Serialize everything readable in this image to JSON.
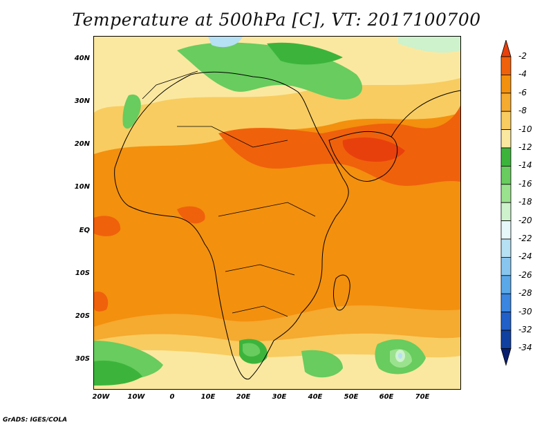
{
  "title": "Temperature at 500hPa [C], VT: 2017100700",
  "credit": "GrADS: IGES/COLA",
  "axes": {
    "lat_labels": [
      "40N",
      "30N",
      "20N",
      "10N",
      "EQ",
      "10S",
      "20S",
      "30S"
    ],
    "lon_labels": [
      "20W",
      "10W",
      "0",
      "10E",
      "20E",
      "30E",
      "40E",
      "50E",
      "60E",
      "70E"
    ]
  },
  "colorbar": {
    "labels": [
      "-2",
      "-4",
      "-6",
      "-8",
      "-10",
      "-12",
      "-14",
      "-16",
      "-18",
      "-20",
      "-22",
      "-24",
      "-26",
      "-28",
      "-30",
      "-32",
      "-34"
    ],
    "colors": [
      "#e8400c",
      "#f0610c",
      "#f3900e",
      "#f5aa30",
      "#f8cc60",
      "#fbe8a0",
      "#3cb43c",
      "#68cc5e",
      "#9be28e",
      "#cdf2cc",
      "#e6f8fa",
      "#b6e0f4",
      "#88c6ef",
      "#5aa8e8",
      "#3a86e0",
      "#2060c8",
      "#1040a0",
      "#0a1e70"
    ]
  }
}
